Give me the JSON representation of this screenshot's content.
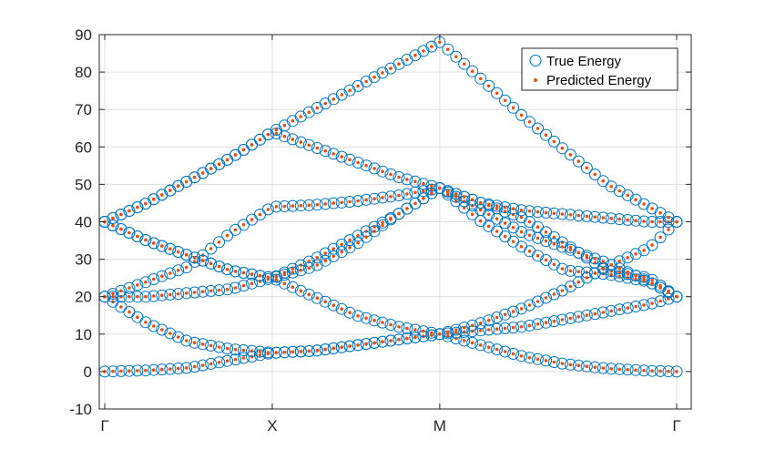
{
  "chart_data": {
    "type": "scatter",
    "title": "",
    "xlabel": "",
    "ylabel": "",
    "xlim": [
      0,
      3.06
    ],
    "ylim": [
      -10,
      90
    ],
    "yticks": [
      -10,
      0,
      10,
      20,
      30,
      40,
      50,
      60,
      70,
      80,
      90
    ],
    "xticks": [
      {
        "value": 0,
        "label": "Γ"
      },
      {
        "value": 1,
        "label": "X"
      },
      {
        "value": 2,
        "label": "M"
      },
      {
        "value": 3.41421,
        "label": "Γ"
      }
    ],
    "grid": true,
    "legend_position": "top-right",
    "legend": [
      "True Energy",
      "Predicted Energy"
    ],
    "colors": {
      "true": "#0072BD",
      "predicted": "#D95319",
      "axis": "#262626",
      "grid": "#DFDFDF"
    },
    "segments": [
      {
        "from": "Γ",
        "to": "X",
        "x_start": 0,
        "x_end": 1
      },
      {
        "from": "X",
        "to": "M",
        "x_start": 1,
        "x_end": 2
      },
      {
        "from": "M",
        "to": "Γ",
        "x_start": 2,
        "x_end": 3.41421
      }
    ],
    "bands": [
      {
        "name": "band-1",
        "x": [
          0,
          0.25,
          0.5,
          0.75,
          1,
          1.25,
          1.5,
          1.75,
          2,
          2.25,
          2.5,
          2.75,
          3,
          3.25,
          3.41421
        ],
        "y": [
          0,
          0.3,
          1,
          3,
          5,
          5.5,
          7,
          8.5,
          10,
          7,
          4,
          2,
          0.8,
          0.2,
          0
        ]
      },
      {
        "name": "band-2",
        "x": [
          0,
          0.25,
          0.5,
          0.75,
          1,
          1.25,
          1.5,
          1.75,
          2,
          2.25,
          2.5,
          2.75,
          3,
          3.25,
          3.41421
        ],
        "y": [
          20,
          13,
          8,
          6,
          5,
          5.5,
          7,
          8.5,
          10,
          11,
          12,
          14,
          16,
          18,
          20
        ]
      },
      {
        "name": "band-3",
        "x": [
          0,
          0.25,
          0.5,
          0.75,
          1,
          1.25,
          1.5,
          1.75,
          2,
          2.25,
          2.5,
          2.75,
          3,
          3.25,
          3.41421
        ],
        "y": [
          20,
          20,
          21,
          22,
          25,
          30,
          36,
          42,
          49,
          40,
          33,
          27,
          26,
          24,
          20
        ]
      },
      {
        "name": "band-4",
        "x": [
          0,
          0.25,
          0.5,
          0.75,
          1,
          1.25,
          1.5,
          1.75,
          2,
          2.25,
          2.5,
          2.75,
          3,
          3.25,
          3.41421
        ],
        "y": [
          20,
          24,
          28,
          37,
          44,
          44.5,
          45.5,
          47,
          49,
          45,
          41,
          34,
          27,
          25,
          20
        ]
      },
      {
        "name": "band-5",
        "x": [
          0,
          0.25,
          0.5,
          0.75,
          1,
          1.25,
          1.5,
          1.75,
          2,
          2.25,
          2.5,
          2.75,
          3,
          3.25,
          3.41421
        ],
        "y": [
          40,
          35,
          31,
          27,
          25,
          20,
          15,
          12,
          10,
          13,
          17,
          22,
          28,
          33,
          40
        ]
      },
      {
        "name": "band-6",
        "x": [
          0,
          0.25,
          0.5,
          0.75,
          1,
          1.25,
          1.5,
          1.75,
          2,
          2.25,
          2.5,
          2.75,
          3,
          3.25,
          3.41421
        ],
        "y": [
          40,
          35,
          31,
          27,
          25,
          28,
          34,
          42,
          49,
          43,
          37,
          33,
          29,
          24,
          20
        ]
      },
      {
        "name": "band-7",
        "x": [
          0,
          0.25,
          0.5,
          0.75,
          1,
          1.25,
          1.5,
          1.75,
          2,
          2.25,
          2.5,
          2.75,
          3,
          3.25,
          3.41421
        ],
        "y": [
          40,
          45,
          51,
          57,
          64,
          60,
          56,
          52,
          49,
          45,
          43,
          42,
          41,
          40,
          40
        ]
      },
      {
        "name": "band-8",
        "x": [
          0,
          0.25,
          0.5,
          0.75,
          1,
          1.25,
          1.5,
          1.75,
          2,
          2.25,
          2.5,
          2.75,
          3,
          3.25,
          3.41421
        ],
        "y": [
          40,
          45,
          51,
          57,
          64,
          70,
          76,
          82,
          88,
          78,
          68,
          59,
          50,
          44,
          40
        ]
      }
    ]
  }
}
